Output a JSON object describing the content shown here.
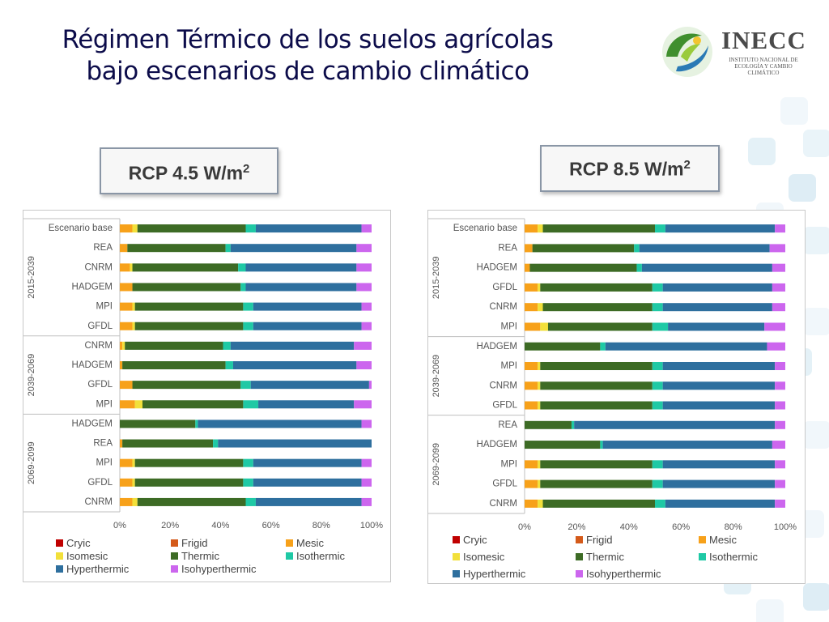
{
  "title_line1": "Régimen Térmico de los suelos agrícolas",
  "title_line2": "bajo escenarios de cambio climático",
  "logo": {
    "name": "INECC",
    "subtitle": "INSTITUTO NACIONAL DE ECOLOGÍA Y CAMBIO CLIMÁTICO"
  },
  "colors": {
    "Cryic": "#c00000",
    "Frigid": "#d45a1a",
    "Mesic": "#f7a11a",
    "Isomesic": "#f2e03a",
    "Thermic": "#3d6b25",
    "Isothermic": "#1fc9a5",
    "Hyperthermic": "#2e6f9e",
    "Isohyperthermic": "#cc66ee"
  },
  "chart_data": [
    {
      "type": "bar",
      "orientation": "horizontal",
      "stacked": true,
      "header": "RCP 4.5 W/m",
      "header_sup": "2",
      "xlim": [
        0,
        100
      ],
      "xticks": [
        "0%",
        "20%",
        "40%",
        "60%",
        "80%",
        "100%"
      ],
      "legend_position": "bottom",
      "series_names": [
        "Cryic",
        "Frigid",
        "Mesic",
        "Isomesic",
        "Thermic",
        "Isothermic",
        "Hyperthermic",
        "Isohyperthermic"
      ],
      "groups": [
        {
          "period": "2015-2039",
          "rows": [
            {
              "label": "Escenario base",
              "values": [
                0,
                0,
                5,
                2,
                43,
                4,
                42,
                4
              ]
            },
            {
              "label": "REA",
              "values": [
                0,
                0,
                3,
                0,
                39,
                2,
                50,
                6
              ]
            },
            {
              "label": "CNRM",
              "values": [
                0,
                0,
                4,
                1,
                42,
                3,
                44,
                6
              ]
            },
            {
              "label": "HADGEM",
              "values": [
                0,
                0,
                5,
                0,
                43,
                2,
                44,
                6
              ]
            },
            {
              "label": "MPI",
              "values": [
                0,
                0,
                5,
                1,
                43,
                4,
                43,
                4
              ]
            },
            {
              "label": "GFDL",
              "values": [
                0,
                0,
                5,
                1,
                43,
                4,
                43,
                4
              ]
            }
          ]
        },
        {
          "period": "2039-2069",
          "rows": [
            {
              "label": "CNRM",
              "values": [
                0,
                0,
                1,
                1,
                39,
                3,
                49,
                7
              ]
            },
            {
              "label": "HADGEM",
              "values": [
                0,
                0,
                1,
                0,
                41,
                3,
                49,
                6
              ]
            },
            {
              "label": "GFDL",
              "values": [
                0,
                0,
                5,
                0,
                43,
                4,
                47,
                1
              ]
            },
            {
              "label": "MPI",
              "values": [
                0,
                0,
                6,
                3,
                40,
                6,
                38,
                7
              ]
            }
          ]
        },
        {
          "period": "2069-2099",
          "rows": [
            {
              "label": "HADGEM",
              "values": [
                0,
                0,
                0,
                0,
                30,
                1,
                65,
                4
              ]
            },
            {
              "label": "REA",
              "values": [
                0,
                0,
                1,
                0,
                36,
                2,
                61,
                0
              ]
            },
            {
              "label": "MPI",
              "values": [
                0,
                0,
                5,
                1,
                43,
                4,
                43,
                4
              ]
            },
            {
              "label": "GFDL",
              "values": [
                0,
                0,
                5,
                1,
                43,
                4,
                43,
                4
              ]
            },
            {
              "label": "CNRM",
              "values": [
                0,
                0,
                5,
                2,
                43,
                4,
                42,
                4
              ]
            }
          ]
        }
      ]
    },
    {
      "type": "bar",
      "orientation": "horizontal",
      "stacked": true,
      "header": "RCP 8.5 W/m",
      "header_sup": "2",
      "xlim": [
        0,
        100
      ],
      "xticks": [
        "0%",
        "20%",
        "40%",
        "60%",
        "80%",
        "100%"
      ],
      "legend_position": "bottom",
      "series_names": [
        "Cryic",
        "Frigid",
        "Mesic",
        "Isomesic",
        "Thermic",
        "Isothermic",
        "Hyperthermic",
        "Isohyperthermic"
      ],
      "groups": [
        {
          "period": "2015-2039",
          "rows": [
            {
              "label": "Escenario base",
              "values": [
                0,
                0,
                5,
                2,
                43,
                4,
                42,
                4
              ]
            },
            {
              "label": "REA",
              "values": [
                0,
                0,
                3,
                0,
                39,
                2,
                50,
                6
              ]
            },
            {
              "label": "HADGEM",
              "values": [
                0,
                0,
                2,
                0,
                41,
                2,
                50,
                5
              ]
            },
            {
              "label": "GFDL",
              "values": [
                0,
                0,
                5,
                1,
                43,
                4,
                42,
                5
              ]
            },
            {
              "label": "CNRM",
              "values": [
                0,
                0,
                5,
                2,
                42,
                4,
                42,
                5
              ]
            },
            {
              "label": "MPI",
              "values": [
                0,
                0,
                6,
                3,
                40,
                6,
                37,
                8
              ]
            }
          ]
        },
        {
          "period": "2039-2069",
          "rows": [
            {
              "label": "HADGEM",
              "values": [
                0,
                0,
                0,
                0,
                29,
                2,
                62,
                7
              ]
            },
            {
              "label": "MPI",
              "values": [
                0,
                0,
                5,
                1,
                43,
                4,
                43,
                4
              ]
            },
            {
              "label": "CNRM",
              "values": [
                0,
                0,
                5,
                1,
                43,
                4,
                43,
                4
              ]
            },
            {
              "label": "GFDL",
              "values": [
                0,
                0,
                5,
                1,
                43,
                4,
                43,
                4
              ]
            }
          ]
        },
        {
          "period": "2069-2099",
          "rows": [
            {
              "label": "REA",
              "values": [
                0,
                0,
                0,
                0,
                18,
                1,
                77,
                4
              ]
            },
            {
              "label": "HADGEM",
              "values": [
                0,
                0,
                0,
                0,
                29,
                1,
                65,
                5
              ]
            },
            {
              "label": "MPI",
              "values": [
                0,
                0,
                5,
                1,
                43,
                4,
                43,
                4
              ]
            },
            {
              "label": "GFDL",
              "values": [
                0,
                0,
                5,
                1,
                43,
                4,
                43,
                4
              ]
            },
            {
              "label": "CNRM",
              "values": [
                0,
                0,
                5,
                2,
                43,
                4,
                42,
                4
              ]
            }
          ]
        }
      ]
    }
  ]
}
